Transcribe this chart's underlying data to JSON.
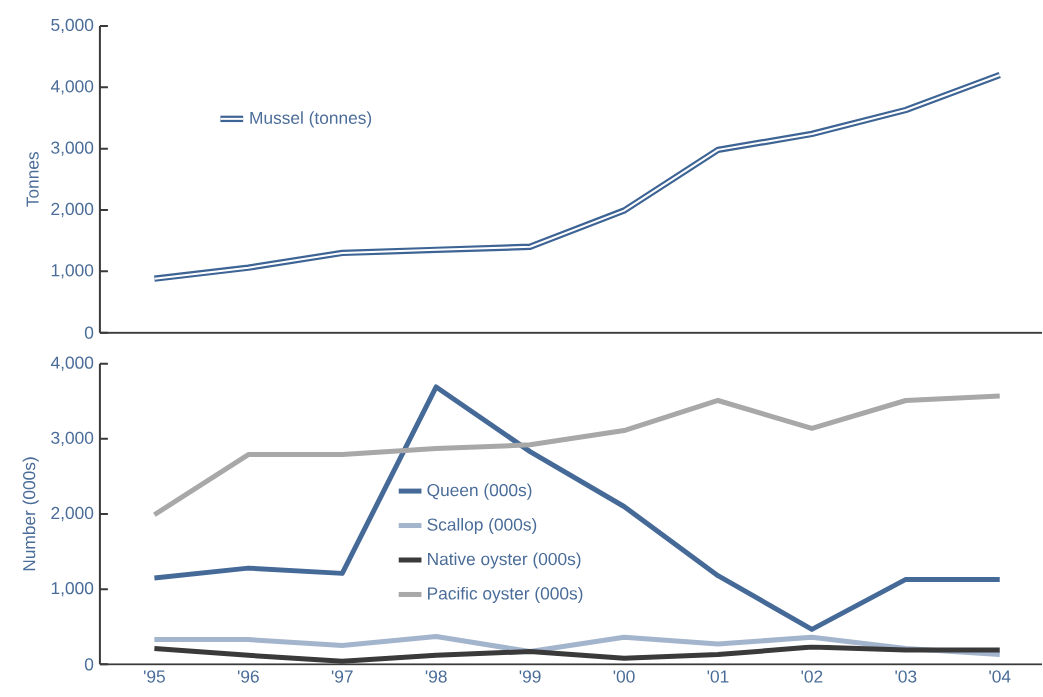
{
  "chart_data": [
    {
      "type": "line",
      "ylabel": "Tonnes",
      "categories": [
        null,
        null,
        null,
        null,
        null,
        null,
        null,
        null,
        null,
        null
      ],
      "series": [
        {
          "name": "Mussel (tonnes)",
          "color": "#3d6494",
          "values": [
            880,
            1060,
            1300,
            1350,
            1400,
            1990,
            2980,
            3240,
            3630,
            4200
          ]
        }
      ],
      "ylim": [
        0,
        5000
      ],
      "yticks": [
        0,
        {
          "value": 1000,
          "label": "1,000"
        },
        {
          "value": 2000,
          "label": "2,000"
        },
        {
          "value": 3000,
          "label": "3,000"
        },
        {
          "value": 4000,
          "label": "4,000"
        },
        {
          "value": 5000,
          "label": "5,000"
        }
      ],
      "tick_labels": "y",
      "legend": "top left",
      "grid": false,
      "marker": "none",
      "line_style": "solid"
    },
    {
      "type": "line",
      "ylabel": "Number (000s)",
      "categories": [
        "'95",
        "'96",
        "'97",
        "'98",
        "'99",
        "'00",
        "'01",
        "'02",
        "'03",
        "'04"
      ],
      "series": [
        {
          "name": "Queen (000s)",
          "color": "#466a98",
          "values": [
            1150,
            1280,
            1210,
            3690,
            2830,
            2100,
            1180,
            465,
            1130,
            1130
          ]
        },
        {
          "name": "Scallop (000s)",
          "color": "#a3b5cc",
          "values": [
            330,
            330,
            250,
            370,
            170,
            360,
            270,
            360,
            210,
            130
          ]
        },
        {
          "name": "Native oyster (000s)",
          "color": "#3a3a3a",
          "values": [
            210,
            120,
            40,
            120,
            170,
            80,
            130,
            230,
            190,
            190
          ]
        },
        {
          "name": "Pacific oyster (000s)",
          "color": "#a8a8a8",
          "values": [
            1990,
            2790,
            2790,
            2870,
            2920,
            3110,
            3510,
            3140,
            3510,
            3570
          ]
        }
      ],
      "ylim": [
        0,
        4000
      ],
      "yticks": [
        0,
        {
          "value": 1000,
          "label": "1,000"
        },
        {
          "value": 2000,
          "label": "2,000"
        },
        {
          "value": 3000,
          "label": "3,000"
        },
        {
          "value": 4000,
          "label": "4,000"
        }
      ],
      "legend": "center",
      "grid": false,
      "marker": "none",
      "line_style": "solid"
    }
  ]
}
